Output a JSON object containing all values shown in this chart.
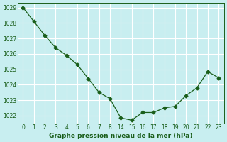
{
  "x_positions": [
    0,
    1,
    2,
    3,
    4,
    5,
    6,
    7,
    8,
    9,
    10,
    11,
    12,
    13,
    14,
    15,
    16,
    17,
    18
  ],
  "x_labels": [
    "0",
    "1",
    "2",
    "3",
    "4",
    "5",
    "6",
    "7",
    "8",
    "14",
    "15",
    "16",
    "17",
    "18",
    "19",
    "20",
    "21",
    "22",
    "23"
  ],
  "y_values": [
    1029.0,
    1028.1,
    1027.2,
    1026.4,
    1025.9,
    1025.3,
    1024.4,
    1023.5,
    1023.1,
    1021.85,
    1021.7,
    1022.2,
    1022.2,
    1022.5,
    1022.6,
    1023.3,
    1023.8,
    1024.85,
    1024.45
  ],
  "ylim": [
    1021.5,
    1029.3
  ],
  "yticks": [
    1022,
    1023,
    1024,
    1025,
    1026,
    1027,
    1028,
    1029
  ],
  "xlabel": "Graphe pression niveau de la mer (hPa)",
  "line_color": "#1a5e1a",
  "marker": "D",
  "marker_size": 2.5,
  "background_color": "#c8eef0",
  "grid_color": "#ffffff",
  "tick_label_color": "#1a5e1a",
  "xlabel_color": "#1a5e1a"
}
